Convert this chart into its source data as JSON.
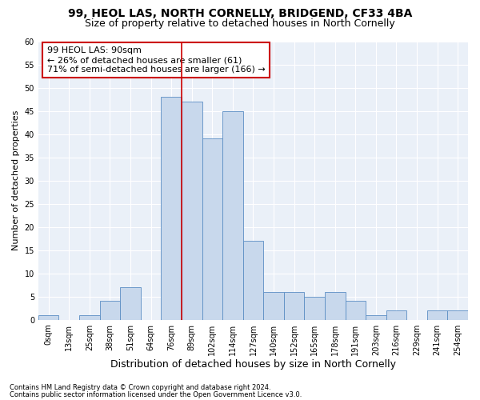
{
  "title": "99, HEOL LAS, NORTH CORNELLY, BRIDGEND, CF33 4BA",
  "subtitle": "Size of property relative to detached houses in North Cornelly",
  "xlabel": "Distribution of detached houses by size in North Cornelly",
  "ylabel": "Number of detached properties",
  "bar_color": "#c8d8ec",
  "bar_edge_color": "#5b8ec4",
  "bin_labels": [
    "0sqm",
    "13sqm",
    "25sqm",
    "38sqm",
    "51sqm",
    "64sqm",
    "76sqm",
    "89sqm",
    "102sqm",
    "114sqm",
    "127sqm",
    "140sqm",
    "152sqm",
    "165sqm",
    "178sqm",
    "191sqm",
    "203sqm",
    "216sqm",
    "229sqm",
    "241sqm",
    "254sqm"
  ],
  "bar_values": [
    1,
    0,
    1,
    4,
    7,
    0,
    48,
    47,
    39,
    45,
    17,
    6,
    6,
    5,
    6,
    4,
    1,
    2,
    0,
    2,
    2
  ],
  "ylim": [
    0,
    60
  ],
  "yticks": [
    0,
    5,
    10,
    15,
    20,
    25,
    30,
    35,
    40,
    45,
    50,
    55,
    60
  ],
  "vline_x": 6.5,
  "annotation_text": "99 HEOL LAS: 90sqm\n← 26% of detached houses are smaller (61)\n71% of semi-detached houses are larger (166) →",
  "annotation_box_color": "#ffffff",
  "annotation_box_edge": "#cc0000",
  "vline_color": "#cc0000",
  "background_color": "#eaf0f8",
  "footer1": "Contains HM Land Registry data © Crown copyright and database right 2024.",
  "footer2": "Contains public sector information licensed under the Open Government Licence v3.0.",
  "title_fontsize": 10,
  "subtitle_fontsize": 9,
  "xlabel_fontsize": 9,
  "ylabel_fontsize": 8,
  "tick_fontsize": 7,
  "annotation_fontsize": 8,
  "footer_fontsize": 6
}
